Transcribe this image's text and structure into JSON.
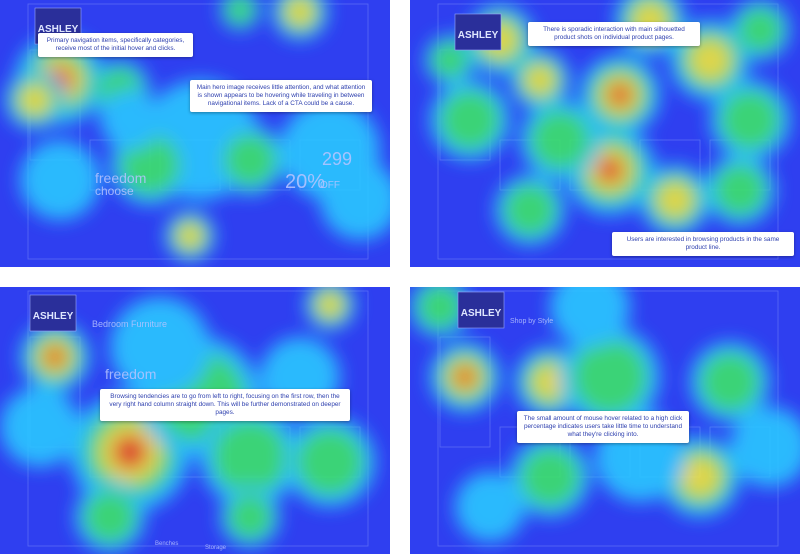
{
  "panels": [
    {
      "logo": "ASHLEY",
      "labels": [
        "freedom",
        "choose",
        "299",
        "20%",
        "OFF"
      ],
      "callouts": [
        "Primary navigation items, specifically categories, receive most of the initial hover and clicks.",
        "Main hero image receives little attention, and what attention is shown appears to be hovering while traveling in between navigational items. Lack of a CTA could be a cause."
      ]
    },
    {
      "logo": "ASHLEY",
      "labels": [],
      "callouts": [
        "There is sporadic interaction with main silhouetted product shots on individual product pages.",
        "Users are interested in browsing products in the same product line."
      ]
    },
    {
      "logo": "ASHLEY",
      "labels": [
        "Bedroom Furniture",
        "freedom",
        "Benches",
        "Storage"
      ],
      "callouts": [
        "Browsing tendencies are to go from left to right, focusing on the first row, then the very right hand column straight down. This will be further demonstrated on deeper pages."
      ]
    },
    {
      "logo": "ASHLEY",
      "labels": [
        "Shop by Style"
      ],
      "callouts": [
        "The small amount of mouse hover related to a high click percentage indicates users take little time to understand what they're clicking into."
      ]
    }
  ]
}
